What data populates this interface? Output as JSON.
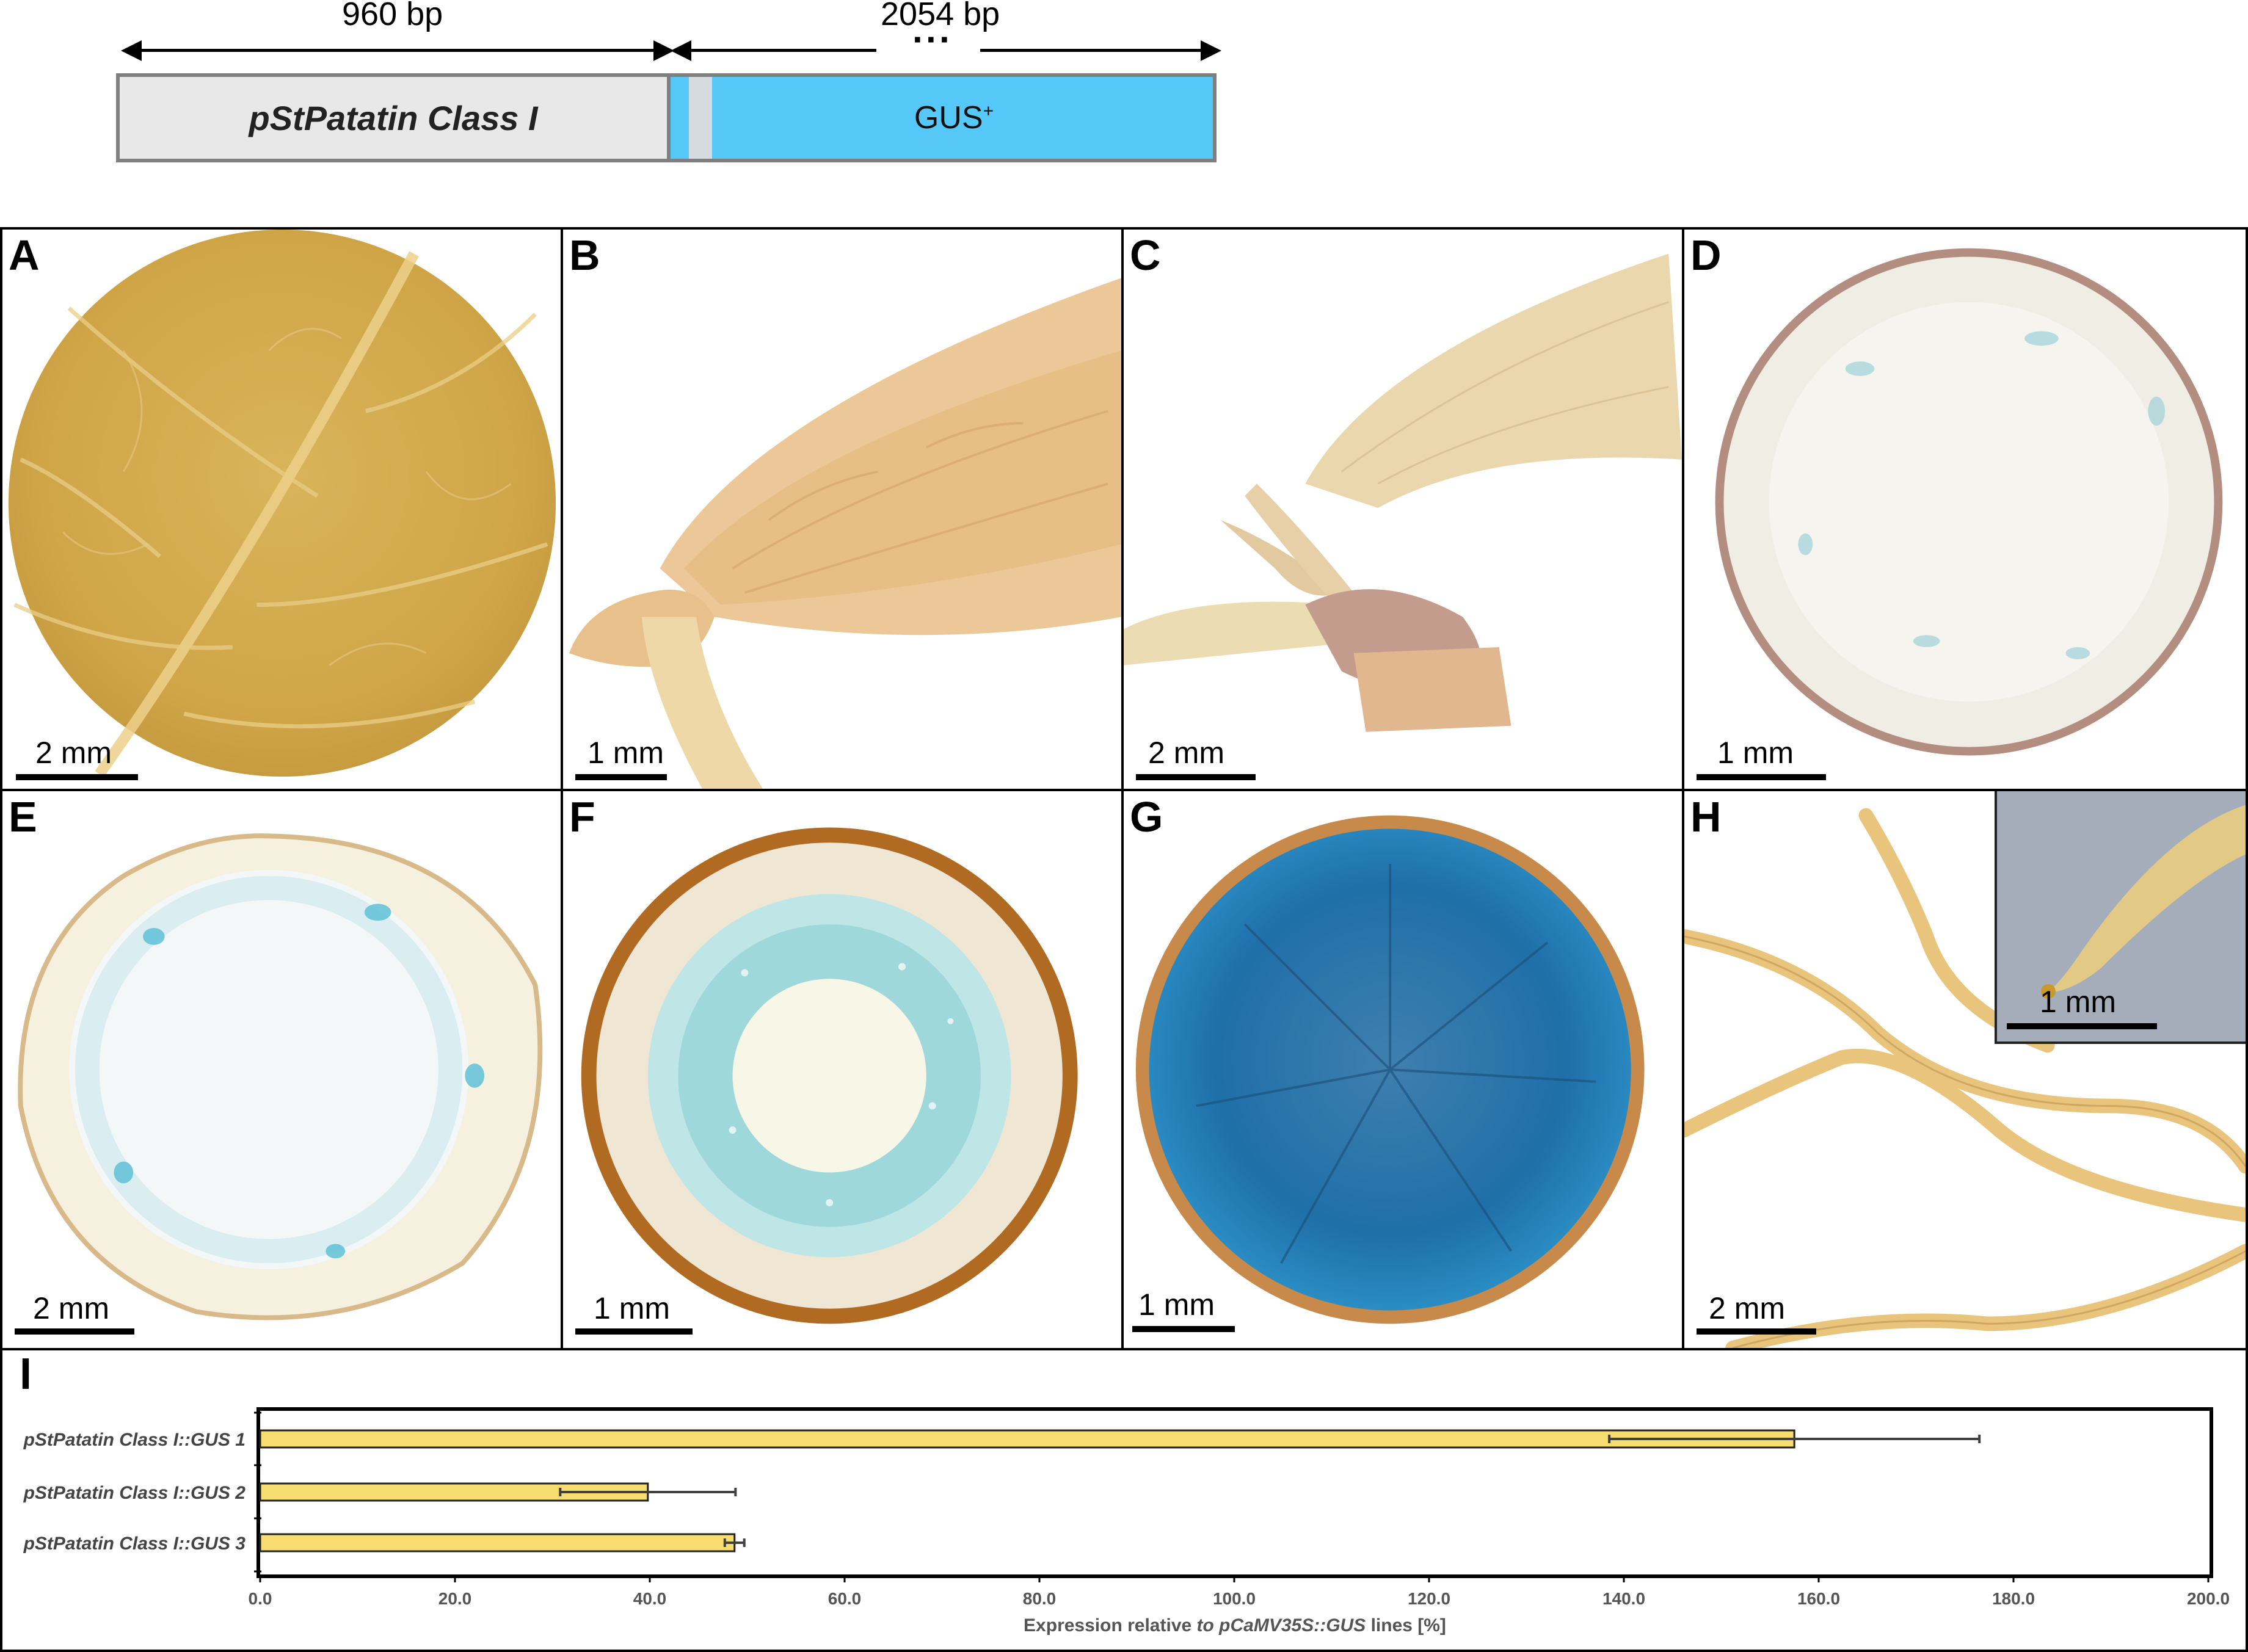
{
  "construct": {
    "promoter_length": "960 bp",
    "gus_length": "2054 bp",
    "ellipsis": "···",
    "promoter_label": "pStPatatin Class I",
    "gus_label": "GUS",
    "gus_superscript": "+"
  },
  "panels": [
    {
      "letter": "A",
      "scale": "2 mm"
    },
    {
      "letter": "B",
      "scale": "1 mm"
    },
    {
      "letter": "C",
      "scale": "2 mm"
    },
    {
      "letter": "D",
      "scale": "1 mm"
    },
    {
      "letter": "E",
      "scale": "2 mm"
    },
    {
      "letter": "F",
      "scale": "1 mm"
    },
    {
      "letter": "G",
      "scale": "1 mm"
    },
    {
      "letter": "H",
      "scale": "2 mm",
      "inset_scale": "1 mm"
    }
  ],
  "chart_data": {
    "type": "bar",
    "orientation": "horizontal",
    "panel_letter": "I",
    "categories": [
      "pStPatatin Class I::GUS 1",
      "pStPatatin Class I::GUS 2",
      "pStPatatin Class I::GUS 3"
    ],
    "values": [
      157.5,
      39.8,
      48.7
    ],
    "errors": [
      19.0,
      9.0,
      1.0
    ],
    "xlabel_pre": "Expression relative ",
    "xlabel_italic": "to pCaMV35S::GUS",
    "xlabel_post": " lines [%]",
    "xlim": [
      0,
      200
    ],
    "xticks": [
      "0.0",
      "20.0",
      "40.0",
      "60.0",
      "80.0",
      "100.0",
      "120.0",
      "140.0",
      "160.0",
      "180.0",
      "200.0"
    ],
    "grid": false,
    "bar_color": "#f7dc6f",
    "error_color": "#404040"
  }
}
